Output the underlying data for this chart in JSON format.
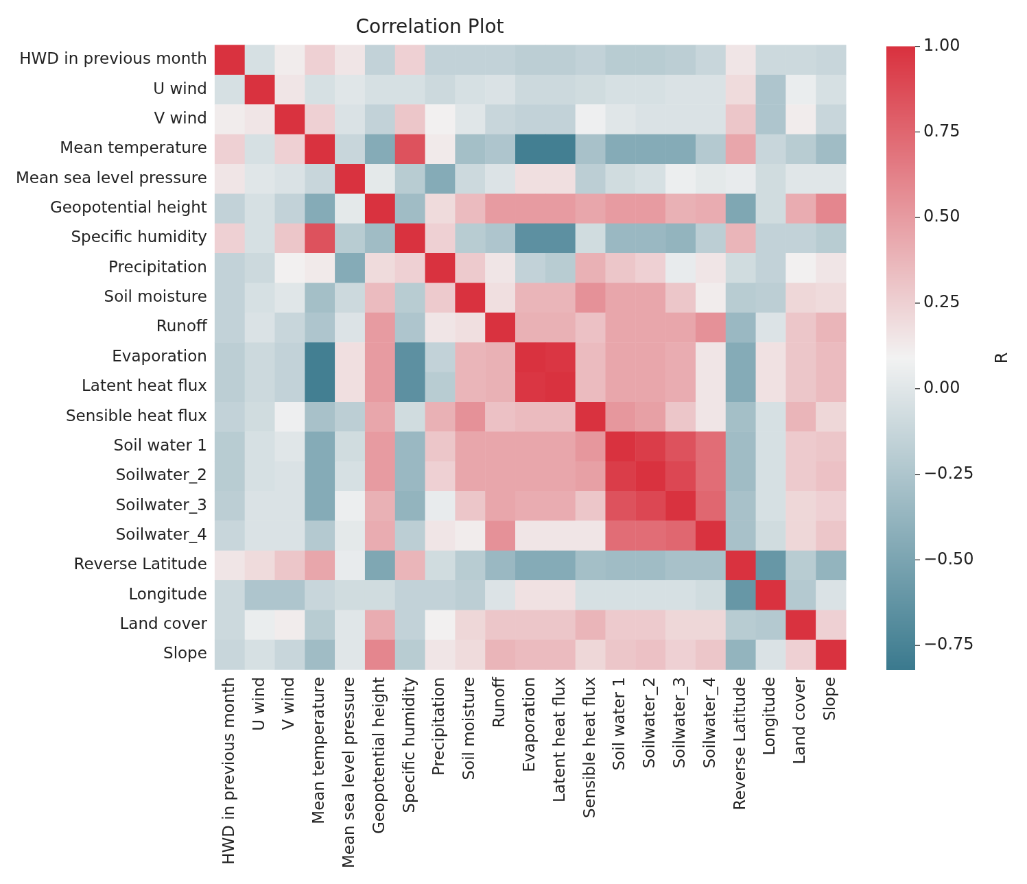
{
  "chart_data": {
    "type": "heatmap",
    "title": "Correlation Plot",
    "clabel": "R",
    "categories": [
      "HWD in previous month",
      "U wind",
      "V wind",
      "Mean temperature",
      "Mean sea level pressure",
      "Geopotential height",
      "Specific humidity",
      "Precipitation",
      "Soil moisture",
      "Runoff",
      "Evaporation",
      "Latent heat flux",
      "Sensible heat flux",
      "Soil water 1",
      "Soilwater_2",
      "Soilwater_3",
      "Soilwater_4",
      "Reverse Latitude",
      "Longitude",
      "Land cover",
      "Slope"
    ],
    "y_categories": [
      "HWD in previous month",
      "U wind",
      "V wind",
      "Mean temperature",
      "Mean sea level pressure",
      "Geopotential height",
      "Specific humidity",
      "Precipitation",
      "Soil moisture",
      "Runoff",
      "Evaporation",
      "Latent heat flux",
      "Sensible heat flux",
      "Soil water 1",
      "Soilwater_2",
      "Soilwater_3",
      "Soilwater_4",
      "Reverse Latitude",
      "Longitude",
      "Land cover",
      "Slope"
    ],
    "cells": [
      [
        1,
        -0.05,
        0.12,
        0.25,
        0.15,
        -0.15,
        0.25,
        -0.15,
        -0.15,
        -0.15,
        -0.18,
        -0.18,
        -0.15,
        -0.2,
        -0.2,
        -0.18,
        -0.12,
        0.15,
        -0.1,
        -0.1,
        -0.12
      ],
      [
        -0.05,
        1,
        0.15,
        -0.05,
        0,
        -0.05,
        -0.05,
        -0.1,
        -0.05,
        -0.03,
        -0.1,
        -0.1,
        -0.08,
        -0.05,
        -0.05,
        -0.03,
        -0.03,
        0.2,
        -0.25,
        0.05,
        -0.05
      ],
      [
        0.12,
        0.15,
        1,
        0.25,
        -0.03,
        -0.15,
        0.3,
        0.1,
        0,
        -0.12,
        -0.15,
        -0.15,
        0.07,
        0,
        -0.03,
        -0.03,
        -0.03,
        0.3,
        -0.25,
        0.12,
        -0.12
      ],
      [
        0.25,
        -0.05,
        0.25,
        1,
        -0.12,
        -0.45,
        0.85,
        0.13,
        -0.3,
        -0.25,
        -0.78,
        -0.78,
        -0.28,
        -0.45,
        -0.45,
        -0.45,
        -0.22,
        0.45,
        -0.12,
        -0.2,
        -0.32
      ],
      [
        0.15,
        0,
        -0.03,
        -0.12,
        1,
        0.02,
        -0.2,
        -0.45,
        -0.1,
        -0.02,
        0.18,
        0.18,
        -0.18,
        -0.08,
        -0.05,
        0.06,
        0.02,
        0.04,
        -0.08,
        0,
        0
      ],
      [
        -0.15,
        -0.05,
        -0.15,
        -0.45,
        0.02,
        1,
        -0.32,
        0.2,
        0.35,
        0.5,
        0.5,
        0.5,
        0.45,
        0.5,
        0.5,
        0.4,
        0.42,
        -0.48,
        -0.08,
        0.42,
        0.6
      ],
      [
        0.25,
        -0.05,
        0.3,
        0.85,
        -0.2,
        -0.32,
        1,
        0.25,
        -0.2,
        -0.25,
        -0.65,
        -0.65,
        -0.08,
        -0.35,
        -0.35,
        -0.38,
        -0.18,
        0.38,
        -0.15,
        -0.15,
        -0.2
      ],
      [
        -0.15,
        -0.1,
        0.1,
        0.13,
        -0.45,
        0.2,
        0.25,
        1,
        0.28,
        0.15,
        -0.15,
        -0.2,
        0.4,
        0.3,
        0.25,
        0.04,
        0.15,
        -0.08,
        -0.15,
        0.1,
        0.15
      ],
      [
        -0.15,
        -0.05,
        0,
        -0.3,
        -0.1,
        0.35,
        -0.2,
        0.28,
        1,
        0.18,
        0.38,
        0.38,
        0.55,
        0.45,
        0.45,
        0.3,
        0.12,
        -0.2,
        -0.18,
        0.22,
        0.2
      ],
      [
        -0.15,
        -0.03,
        -0.12,
        -0.25,
        -0.02,
        0.5,
        -0.25,
        0.15,
        0.18,
        1,
        0.4,
        0.4,
        0.32,
        0.45,
        0.45,
        0.45,
        0.55,
        -0.35,
        -0.02,
        0.3,
        0.38
      ],
      [
        -0.18,
        -0.1,
        -0.15,
        -0.78,
        0.18,
        0.5,
        -0.65,
        -0.15,
        0.38,
        0.4,
        1,
        0.98,
        0.35,
        0.45,
        0.45,
        0.42,
        0.15,
        -0.45,
        0.17,
        0.3,
        0.35
      ],
      [
        -0.18,
        -0.1,
        -0.15,
        -0.78,
        0.18,
        0.5,
        -0.65,
        -0.2,
        0.38,
        0.4,
        0.98,
        1,
        0.35,
        0.45,
        0.45,
        0.42,
        0.15,
        -0.45,
        0.17,
        0.3,
        0.35
      ],
      [
        -0.15,
        -0.08,
        0.07,
        -0.28,
        -0.18,
        0.45,
        -0.08,
        0.4,
        0.55,
        0.32,
        0.35,
        0.35,
        1,
        0.52,
        0.48,
        0.3,
        0.15,
        -0.3,
        -0.05,
        0.38,
        0.22
      ],
      [
        -0.2,
        -0.05,
        0,
        -0.45,
        -0.08,
        0.5,
        -0.35,
        0.3,
        0.45,
        0.45,
        0.45,
        0.45,
        0.52,
        1,
        0.95,
        0.85,
        0.72,
        -0.32,
        -0.05,
        0.28,
        0.3
      ],
      [
        -0.2,
        -0.05,
        -0.03,
        -0.45,
        -0.05,
        0.5,
        -0.35,
        0.25,
        0.45,
        0.45,
        0.45,
        0.45,
        0.48,
        0.95,
        1,
        0.9,
        0.72,
        -0.32,
        -0.05,
        0.28,
        0.32
      ],
      [
        -0.18,
        -0.03,
        -0.03,
        -0.45,
        0.06,
        0.4,
        -0.38,
        0.04,
        0.3,
        0.45,
        0.42,
        0.42,
        0.3,
        0.85,
        0.9,
        1,
        0.75,
        -0.28,
        -0.05,
        0.22,
        0.25
      ],
      [
        -0.12,
        -0.03,
        -0.03,
        -0.22,
        0.02,
        0.42,
        -0.18,
        0.15,
        0.12,
        0.55,
        0.15,
        0.15,
        0.15,
        0.72,
        0.72,
        0.75,
        1,
        -0.28,
        -0.08,
        0.22,
        0.3
      ],
      [
        0.15,
        0.2,
        0.3,
        0.45,
        0.04,
        -0.48,
        0.38,
        -0.08,
        -0.2,
        -0.35,
        -0.45,
        -0.45,
        -0.3,
        -0.32,
        -0.32,
        -0.28,
        -0.28,
        1,
        -0.6,
        -0.2,
        -0.38
      ],
      [
        -0.1,
        -0.25,
        -0.25,
        -0.12,
        -0.08,
        -0.08,
        -0.15,
        -0.15,
        -0.18,
        -0.02,
        0.17,
        0.17,
        -0.05,
        -0.05,
        -0.05,
        -0.05,
        -0.08,
        -0.6,
        1,
        -0.22,
        -0.03
      ],
      [
        -0.1,
        0.05,
        0.12,
        -0.2,
        0,
        0.42,
        -0.15,
        0.1,
        0.22,
        0.3,
        0.3,
        0.3,
        0.38,
        0.28,
        0.28,
        0.22,
        0.22,
        -0.2,
        -0.22,
        1,
        0.25
      ],
      [
        -0.12,
        -0.05,
        -0.12,
        -0.32,
        0,
        0.6,
        -0.2,
        0.15,
        0.2,
        0.38,
        0.35,
        0.35,
        0.22,
        0.3,
        0.32,
        0.25,
        0.3,
        -0.38,
        -0.03,
        0.25,
        1
      ]
    ],
    "clim": [
      -0.82,
      1.0
    ],
    "cticks": [
      {
        "value": 1,
        "label": "1.00"
      },
      {
        "value": 0.75,
        "label": "0.75"
      },
      {
        "value": 0.5,
        "label": "0.50"
      },
      {
        "value": 0.25,
        "label": "0.25"
      },
      {
        "value": 0,
        "label": "0.00"
      },
      {
        "value": -0.25,
        "label": "−0.25"
      },
      {
        "value": -0.5,
        "label": "−0.50"
      },
      {
        "value": -0.75,
        "label": "−0.75"
      }
    ]
  }
}
